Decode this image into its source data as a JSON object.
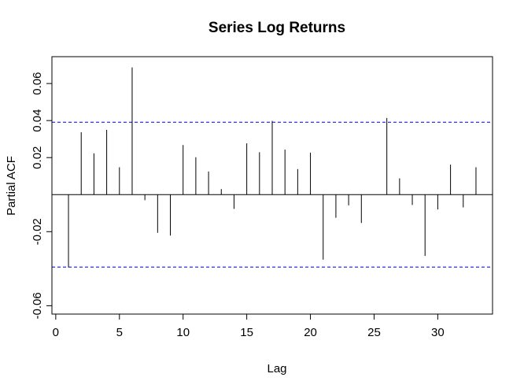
{
  "chart_data": {
    "type": "bar",
    "title": "Series  Log Returns",
    "xlabel": "Lag",
    "ylabel": "Partial ACF",
    "xlim": [
      -0.3,
      34.3
    ],
    "ylim": [
      -0.0645,
      0.0745
    ],
    "x_ticks": [
      0,
      5,
      10,
      15,
      20,
      25,
      30
    ],
    "y_ticks": [
      -0.06,
      -0.02,
      0.02,
      0.04,
      0.06
    ],
    "y_tick_labels": [
      "-0.06",
      "-0.02",
      "0.02",
      "0.04",
      "0.06"
    ],
    "confidence_band": 0.0391,
    "band_color": "#0000cc",
    "bar_color": "#000000",
    "series": [
      {
        "lags": [
          1,
          2,
          3,
          4,
          5,
          6,
          7,
          8,
          9,
          10,
          11,
          12,
          13,
          14,
          15,
          16,
          17,
          18,
          19,
          20,
          21,
          22,
          23,
          24,
          25,
          26,
          27,
          28,
          29,
          30,
          31,
          32,
          33
        ],
        "values": [
          -0.0393,
          0.0337,
          0.0223,
          0.035,
          0.0148,
          0.0687,
          -0.003,
          -0.0206,
          -0.0221,
          0.0268,
          0.0202,
          0.0125,
          0.003,
          -0.0077,
          0.0277,
          0.0229,
          0.0398,
          0.0243,
          0.0138,
          0.0227,
          -0.0351,
          -0.0125,
          -0.0058,
          -0.0153,
          0.0,
          0.0414,
          0.0088,
          -0.0056,
          -0.0331,
          -0.008,
          0.0162,
          -0.0069,
          0.0148
        ]
      }
    ]
  }
}
